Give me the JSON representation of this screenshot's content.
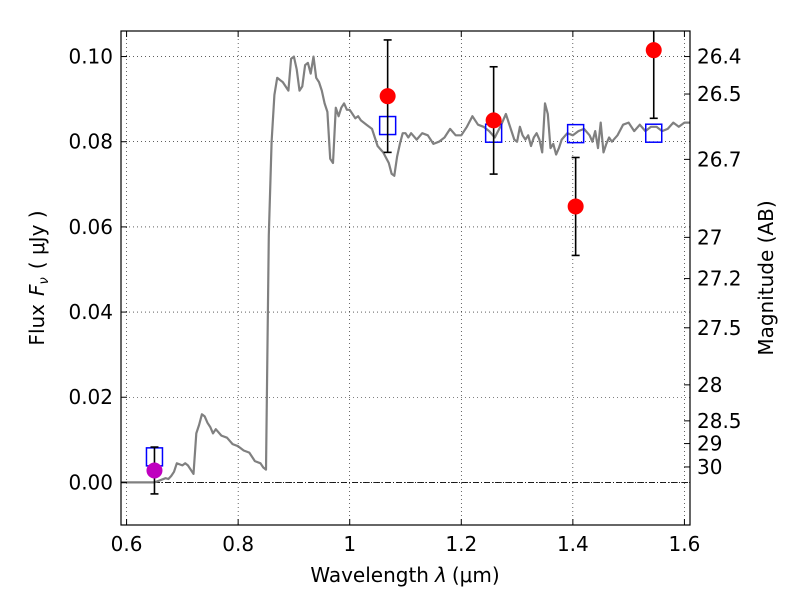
{
  "chart_data": {
    "type": "scatter",
    "xlabel_prefix": "Wavelength",
    "xlabel_symbol": "λ",
    "xlabel_unit": "(μm)",
    "ylabel_prefix": "Flux",
    "ylabel_symbol_main": "F",
    "ylabel_symbol_sub": "ν",
    "ylabel_unit": "( μJy )",
    "y2label": "Magnitude (AB)",
    "xlim": [
      0.59,
      1.61
    ],
    "ylim": [
      -0.01,
      0.106
    ],
    "grid": true,
    "x_ticks": [
      {
        "value": 0.6,
        "label": "0.6"
      },
      {
        "value": 0.8,
        "label": "0.8"
      },
      {
        "value": 1.0,
        "label": "1"
      },
      {
        "value": 1.2,
        "label": "1.2"
      },
      {
        "value": 1.4,
        "label": "1.4"
      },
      {
        "value": 1.6,
        "label": "1.6"
      }
    ],
    "y_ticks": [
      {
        "value": 0.0,
        "label": "0.00"
      },
      {
        "value": 0.02,
        "label": "0.02"
      },
      {
        "value": 0.04,
        "label": "0.04"
      },
      {
        "value": 0.06,
        "label": "0.06"
      },
      {
        "value": 0.08,
        "label": "0.08"
      },
      {
        "value": 0.1,
        "label": "0.10"
      }
    ],
    "y2_ticks": [
      {
        "value": 26.4,
        "label": "26.4"
      },
      {
        "value": 26.5,
        "label": "26.5"
      },
      {
        "value": 26.7,
        "label": "26.7"
      },
      {
        "value": 27.0,
        "label": "27"
      },
      {
        "value": 27.2,
        "label": "27.2"
      },
      {
        "value": 27.5,
        "label": "27.5"
      },
      {
        "value": 28.0,
        "label": "28"
      },
      {
        "value": 28.5,
        "label": "28.5"
      },
      {
        "value": 29.0,
        "label": "29"
      },
      {
        "value": 30.0,
        "label": "30"
      }
    ],
    "zero_line": true,
    "template_spectrum": {
      "color": "#808080",
      "x": [
        0.59,
        0.62,
        0.65,
        0.66,
        0.67,
        0.675,
        0.68,
        0.685,
        0.69,
        0.7,
        0.705,
        0.71,
        0.715,
        0.72,
        0.725,
        0.73,
        0.735,
        0.74,
        0.745,
        0.75,
        0.755,
        0.76,
        0.77,
        0.78,
        0.79,
        0.8,
        0.81,
        0.82,
        0.83,
        0.84,
        0.845,
        0.85,
        0.855,
        0.86,
        0.865,
        0.87,
        0.875,
        0.88,
        0.885,
        0.89,
        0.895,
        0.9,
        0.905,
        0.91,
        0.915,
        0.92,
        0.925,
        0.93,
        0.935,
        0.94,
        0.945,
        0.95,
        0.955,
        0.96,
        0.965,
        0.97,
        0.975,
        0.98,
        0.985,
        0.99,
        0.995,
        1.0,
        1.005,
        1.01,
        1.015,
        1.02,
        1.03,
        1.04,
        1.05,
        1.06,
        1.07,
        1.075,
        1.08,
        1.085,
        1.09,
        1.095,
        1.1,
        1.105,
        1.11,
        1.12,
        1.13,
        1.14,
        1.15,
        1.16,
        1.17,
        1.18,
        1.19,
        1.2,
        1.21,
        1.22,
        1.23,
        1.24,
        1.25,
        1.26,
        1.27,
        1.28,
        1.285,
        1.29,
        1.295,
        1.3,
        1.305,
        1.31,
        1.315,
        1.32,
        1.325,
        1.33,
        1.335,
        1.34,
        1.345,
        1.35,
        1.355,
        1.36,
        1.365,
        1.37,
        1.375,
        1.38,
        1.39,
        1.4,
        1.41,
        1.42,
        1.43,
        1.435,
        1.44,
        1.445,
        1.45,
        1.455,
        1.46,
        1.465,
        1.47,
        1.48,
        1.49,
        1.5,
        1.51,
        1.52,
        1.53,
        1.54,
        1.55,
        1.56,
        1.57,
        1.58,
        1.59,
        1.6,
        1.61
      ],
      "y": [
        0.0,
        0.0,
        0.0,
        0.0005,
        0.001,
        0.0008,
        0.0015,
        0.0025,
        0.0045,
        0.004,
        0.0045,
        0.004,
        0.003,
        0.002,
        0.0115,
        0.0135,
        0.016,
        0.0155,
        0.014,
        0.013,
        0.0115,
        0.0125,
        0.011,
        0.0105,
        0.009,
        0.0085,
        0.0075,
        0.007,
        0.005,
        0.0045,
        0.0035,
        0.003,
        0.058,
        0.08,
        0.091,
        0.095,
        0.0945,
        0.094,
        0.093,
        0.092,
        0.0995,
        0.1,
        0.097,
        0.092,
        0.093,
        0.098,
        0.0985,
        0.096,
        0.1,
        0.095,
        0.094,
        0.092,
        0.089,
        0.087,
        0.076,
        0.075,
        0.088,
        0.086,
        0.088,
        0.089,
        0.0875,
        0.0875,
        0.0865,
        0.0855,
        0.086,
        0.085,
        0.084,
        0.083,
        0.079,
        0.0775,
        0.075,
        0.0725,
        0.072,
        0.0765,
        0.0795,
        0.082,
        0.082,
        0.081,
        0.082,
        0.0805,
        0.082,
        0.0815,
        0.0795,
        0.08,
        0.081,
        0.083,
        0.0815,
        0.0815,
        0.0835,
        0.086,
        0.084,
        0.0835,
        0.0825,
        0.081,
        0.0835,
        0.0865,
        0.0845,
        0.0825,
        0.0805,
        0.08,
        0.0835,
        0.0815,
        0.0805,
        0.0815,
        0.079,
        0.081,
        0.082,
        0.0805,
        0.0775,
        0.089,
        0.0865,
        0.0785,
        0.0795,
        0.077,
        0.0785,
        0.0805,
        0.082,
        0.0815,
        0.0825,
        0.083,
        0.0815,
        0.08,
        0.0825,
        0.0785,
        0.0845,
        0.0775,
        0.0795,
        0.081,
        0.08,
        0.0815,
        0.084,
        0.0845,
        0.0825,
        0.084,
        0.0825,
        0.0835,
        0.0835,
        0.0825,
        0.083,
        0.0845,
        0.0835,
        0.0845,
        0.0845
      ]
    },
    "model_photometry": {
      "color": "#0000ff",
      "marker": "open-square",
      "x": [
        0.65,
        1.068,
        1.258,
        1.405,
        1.545
      ],
      "y": [
        0.006,
        0.0838,
        0.082,
        0.0819,
        0.082
      ]
    },
    "observed_photometry": [
      {
        "x": 0.65,
        "y": 0.0028,
        "yerr": 0.0055,
        "color": "#bf00bf"
      },
      {
        "x": 1.068,
        "y": 0.0907,
        "yerr": 0.0132,
        "color": "#ff0000"
      },
      {
        "x": 1.258,
        "y": 0.085,
        "yerr": 0.0126,
        "color": "#ff0000"
      },
      {
        "x": 1.405,
        "y": 0.0648,
        "yerr": 0.0115,
        "color": "#ff0000"
      },
      {
        "x": 1.545,
        "y": 0.1015,
        "yerr": 0.016,
        "color": "#ff0000"
      }
    ]
  }
}
